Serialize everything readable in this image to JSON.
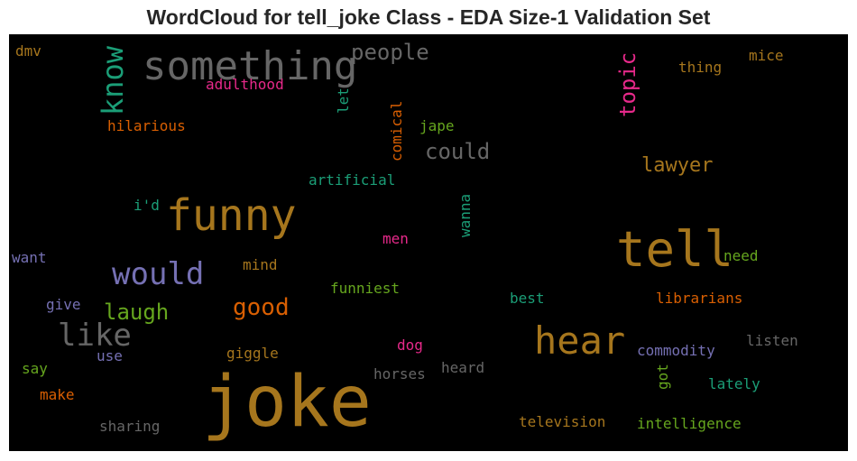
{
  "chart_data": {
    "type": "wordcloud",
    "title": "WordCloud for tell_joke Class - EDA Size-1 Validation Set",
    "background": "#000000",
    "words": [
      {
        "text": "joke",
        "color": "#a6761d"
      },
      {
        "text": "tell",
        "color": "#a6761d"
      },
      {
        "text": "funny",
        "color": "#a6761d"
      },
      {
        "text": "something",
        "color": "#666666"
      },
      {
        "text": "hear",
        "color": "#a6761d"
      },
      {
        "text": "would",
        "color": "#7570b3"
      },
      {
        "text": "like",
        "color": "#666666"
      },
      {
        "text": "know",
        "color": "#1b9e77"
      },
      {
        "text": "people",
        "color": "#666666"
      },
      {
        "text": "could",
        "color": "#666666"
      },
      {
        "text": "topic",
        "color": "#e7298a"
      },
      {
        "text": "lawyer",
        "color": "#a6761d"
      },
      {
        "text": "good",
        "color": "#d95f02"
      },
      {
        "text": "laugh",
        "color": "#66a61e"
      },
      {
        "text": "adulthood",
        "color": "#e7298a"
      },
      {
        "text": "hilarious",
        "color": "#d95f02"
      },
      {
        "text": "let",
        "color": "#1b9e77"
      },
      {
        "text": "comical",
        "color": "#d95f02"
      },
      {
        "text": "jape",
        "color": "#66a61e"
      },
      {
        "text": "thing",
        "color": "#a6761d"
      },
      {
        "text": "mice",
        "color": "#a6761d"
      },
      {
        "text": "dmv",
        "color": "#a6761d"
      },
      {
        "text": "artificial",
        "color": "#1b9e77"
      },
      {
        "text": "i'd",
        "color": "#1b9e77"
      },
      {
        "text": "wanna",
        "color": "#1b9e77"
      },
      {
        "text": "men",
        "color": "#e7298a"
      },
      {
        "text": "want",
        "color": "#7570b3"
      },
      {
        "text": "mind",
        "color": "#a6761d"
      },
      {
        "text": "need",
        "color": "#66a61e"
      },
      {
        "text": "funniest",
        "color": "#66a61e"
      },
      {
        "text": "best",
        "color": "#1b9e77"
      },
      {
        "text": "librarians",
        "color": "#d95f02"
      },
      {
        "text": "give",
        "color": "#7570b3"
      },
      {
        "text": "giggle",
        "color": "#a6761d"
      },
      {
        "text": "dog",
        "color": "#e7298a"
      },
      {
        "text": "commodity",
        "color": "#7570b3"
      },
      {
        "text": "listen",
        "color": "#666666"
      },
      {
        "text": "use",
        "color": "#7570b3"
      },
      {
        "text": "say",
        "color": "#66a61e"
      },
      {
        "text": "horses",
        "color": "#666666"
      },
      {
        "text": "heard",
        "color": "#666666"
      },
      {
        "text": "got",
        "color": "#66a61e"
      },
      {
        "text": "lately",
        "color": "#1b9e77"
      },
      {
        "text": "make",
        "color": "#d95f02"
      },
      {
        "text": "sharing",
        "color": "#666666"
      },
      {
        "text": "television",
        "color": "#a6761d"
      },
      {
        "text": "intelligence",
        "color": "#66a61e"
      }
    ]
  }
}
